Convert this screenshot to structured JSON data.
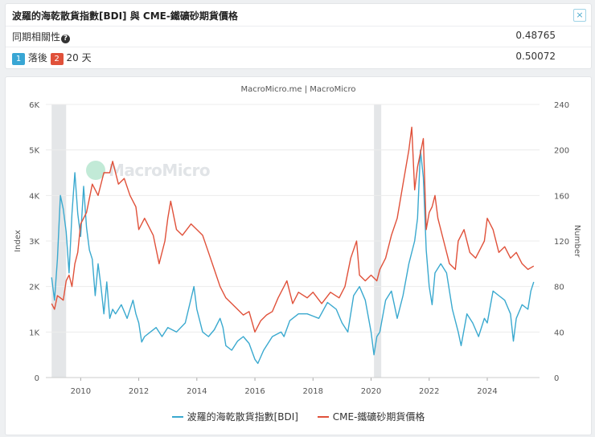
{
  "header": {
    "title": "波羅的海乾散貨指數[BDI] 與 CME-鐵礦砂期貨價格",
    "close_symbol": "×"
  },
  "stats": {
    "correlation_label": "同期相關性",
    "correlation_help": "?",
    "correlation_value": "0.48765",
    "lag_badge_1": "1",
    "lag_badge_1_text": "落後",
    "lag_badge_2": "2",
    "lag_badge_2_text": "20 天",
    "lag_value": "0.50072"
  },
  "chart_meta": {
    "source": "MacroMicro.me | MacroMicro",
    "watermark": "MacroMicro"
  },
  "colors": {
    "bdi": "#3aa9cf",
    "iron": "#e0513a"
  },
  "chart_data": {
    "type": "line",
    "title": "",
    "xlabel": "",
    "x_ticks": [
      "2010",
      "2012",
      "2014",
      "2016",
      "2018",
      "2020",
      "2022",
      "2024"
    ],
    "x_range": [
      2008.8,
      2025.8
    ],
    "left_axis": {
      "label": "Index",
      "ylim": [
        0,
        6000
      ],
      "ticks": [
        "0",
        "1K",
        "2K",
        "3K",
        "4K",
        "5K",
        "6K"
      ]
    },
    "right_axis": {
      "label": "Number",
      "ylim": [
        0,
        240
      ],
      "ticks": [
        "0",
        "40",
        "80",
        "120",
        "160",
        "200",
        "240"
      ]
    },
    "shaded_periods": [
      [
        2009.0,
        2009.5
      ],
      [
        2020.1,
        2020.35
      ]
    ],
    "series": [
      {
        "name": "波羅的海乾散貨指數[BDI]",
        "axis": "left",
        "x": [
          2009.0,
          2009.1,
          2009.2,
          2009.3,
          2009.4,
          2009.5,
          2009.6,
          2009.7,
          2009.8,
          2009.9,
          2010.0,
          2010.1,
          2010.2,
          2010.3,
          2010.4,
          2010.5,
          2010.6,
          2010.7,
          2010.8,
          2010.9,
          2011.0,
          2011.1,
          2011.2,
          2011.4,
          2011.6,
          2011.8,
          2011.9,
          2012.0,
          2012.1,
          2012.2,
          2012.4,
          2012.6,
          2012.8,
          2013.0,
          2013.3,
          2013.6,
          2013.9,
          2014.0,
          2014.2,
          2014.4,
          2014.6,
          2014.8,
          2014.9,
          2015.0,
          2015.2,
          2015.4,
          2015.6,
          2015.8,
          2016.0,
          2016.1,
          2016.3,
          2016.6,
          2016.9,
          2017.0,
          2017.2,
          2017.5,
          2017.8,
          2018.0,
          2018.2,
          2018.5,
          2018.8,
          2019.0,
          2019.2,
          2019.4,
          2019.6,
          2019.8,
          2020.0,
          2020.1,
          2020.2,
          2020.3,
          2020.5,
          2020.7,
          2020.9,
          2021.1,
          2021.3,
          2021.5,
          2021.6,
          2021.7,
          2021.8,
          2021.9,
          2022.0,
          2022.1,
          2022.2,
          2022.4,
          2022.6,
          2022.8,
          2023.0,
          2023.1,
          2023.3,
          2023.5,
          2023.7,
          2023.9,
          2024.0,
          2024.2,
          2024.4,
          2024.6,
          2024.8,
          2024.9,
          2025.0,
          2025.2,
          2025.4,
          2025.5,
          2025.6
        ],
        "values": [
          2200,
          1700,
          2600,
          4000,
          3700,
          3200,
          2300,
          3600,
          4500,
          3600,
          3100,
          4200,
          3300,
          2800,
          2600,
          1800,
          2500,
          2000,
          1400,
          2100,
          1300,
          1500,
          1400,
          1600,
          1300,
          1700,
          1400,
          1200,
          780,
          900,
          1000,
          1100,
          900,
          1100,
          1000,
          1200,
          2000,
          1500,
          1000,
          900,
          1050,
          1300,
          1100,
          700,
          600,
          800,
          900,
          750,
          400,
          310,
          600,
          900,
          1000,
          900,
          1250,
          1400,
          1400,
          1350,
          1300,
          1650,
          1500,
          1200,
          1000,
          1800,
          2000,
          1700,
          1000,
          500,
          900,
          1000,
          1700,
          1900,
          1300,
          1800,
          2500,
          3000,
          3500,
          5000,
          4400,
          2800,
          2000,
          1600,
          2300,
          2500,
          2300,
          1500,
          1000,
          700,
          1400,
          1200,
          900,
          1300,
          1200,
          1900,
          1800,
          1700,
          1400,
          800,
          1300,
          1600,
          1500,
          1900,
          2100
        ]
      },
      {
        "name": "CME-鐵礦砂期貨價格",
        "axis": "right",
        "x": [
          2009.0,
          2009.1,
          2009.2,
          2009.3,
          2009.4,
          2009.5,
          2009.6,
          2009.7,
          2009.8,
          2009.9,
          2010.0,
          2010.2,
          2010.4,
          2010.6,
          2010.8,
          2011.0,
          2011.1,
          2011.3,
          2011.5,
          2011.7,
          2011.9,
          2012.0,
          2012.2,
          2012.5,
          2012.7,
          2012.9,
          2013.0,
          2013.1,
          2013.3,
          2013.5,
          2013.8,
          2014.0,
          2014.2,
          2014.4,
          2014.6,
          2014.8,
          2015.0,
          2015.2,
          2015.4,
          2015.6,
          2015.8,
          2016.0,
          2016.2,
          2016.4,
          2016.6,
          2016.8,
          2017.0,
          2017.1,
          2017.3,
          2017.5,
          2017.8,
          2018.0,
          2018.3,
          2018.6,
          2018.9,
          2019.1,
          2019.3,
          2019.5,
          2019.6,
          2019.8,
          2020.0,
          2020.2,
          2020.3,
          2020.5,
          2020.7,
          2020.9,
          2021.1,
          2021.3,
          2021.4,
          2021.5,
          2021.6,
          2021.8,
          2021.9,
          2022.0,
          2022.1,
          2022.2,
          2022.3,
          2022.5,
          2022.7,
          2022.9,
          2023.0,
          2023.2,
          2023.4,
          2023.6,
          2023.8,
          2023.9,
          2024.0,
          2024.2,
          2024.4,
          2024.6,
          2024.8,
          2025.0,
          2025.2,
          2025.4,
          2025.6
        ],
        "values": [
          65,
          60,
          72,
          70,
          68,
          85,
          90,
          80,
          100,
          110,
          135,
          145,
          170,
          160,
          180,
          180,
          190,
          170,
          175,
          160,
          150,
          130,
          140,
          125,
          100,
          120,
          140,
          155,
          130,
          125,
          135,
          130,
          125,
          110,
          95,
          80,
          70,
          65,
          60,
          55,
          58,
          40,
          50,
          55,
          58,
          70,
          80,
          85,
          65,
          75,
          70,
          75,
          65,
          75,
          70,
          80,
          105,
          120,
          90,
          85,
          90,
          85,
          95,
          105,
          125,
          140,
          170,
          200,
          220,
          165,
          185,
          210,
          130,
          145,
          150,
          160,
          140,
          120,
          100,
          95,
          120,
          130,
          110,
          105,
          115,
          120,
          140,
          130,
          110,
          115,
          105,
          110,
          100,
          95,
          98
        ]
      }
    ]
  },
  "legend": {
    "bdi_label": "波羅的海乾散貨指數[BDI]",
    "iron_label": "CME-鐵礦砂期貨價格"
  }
}
